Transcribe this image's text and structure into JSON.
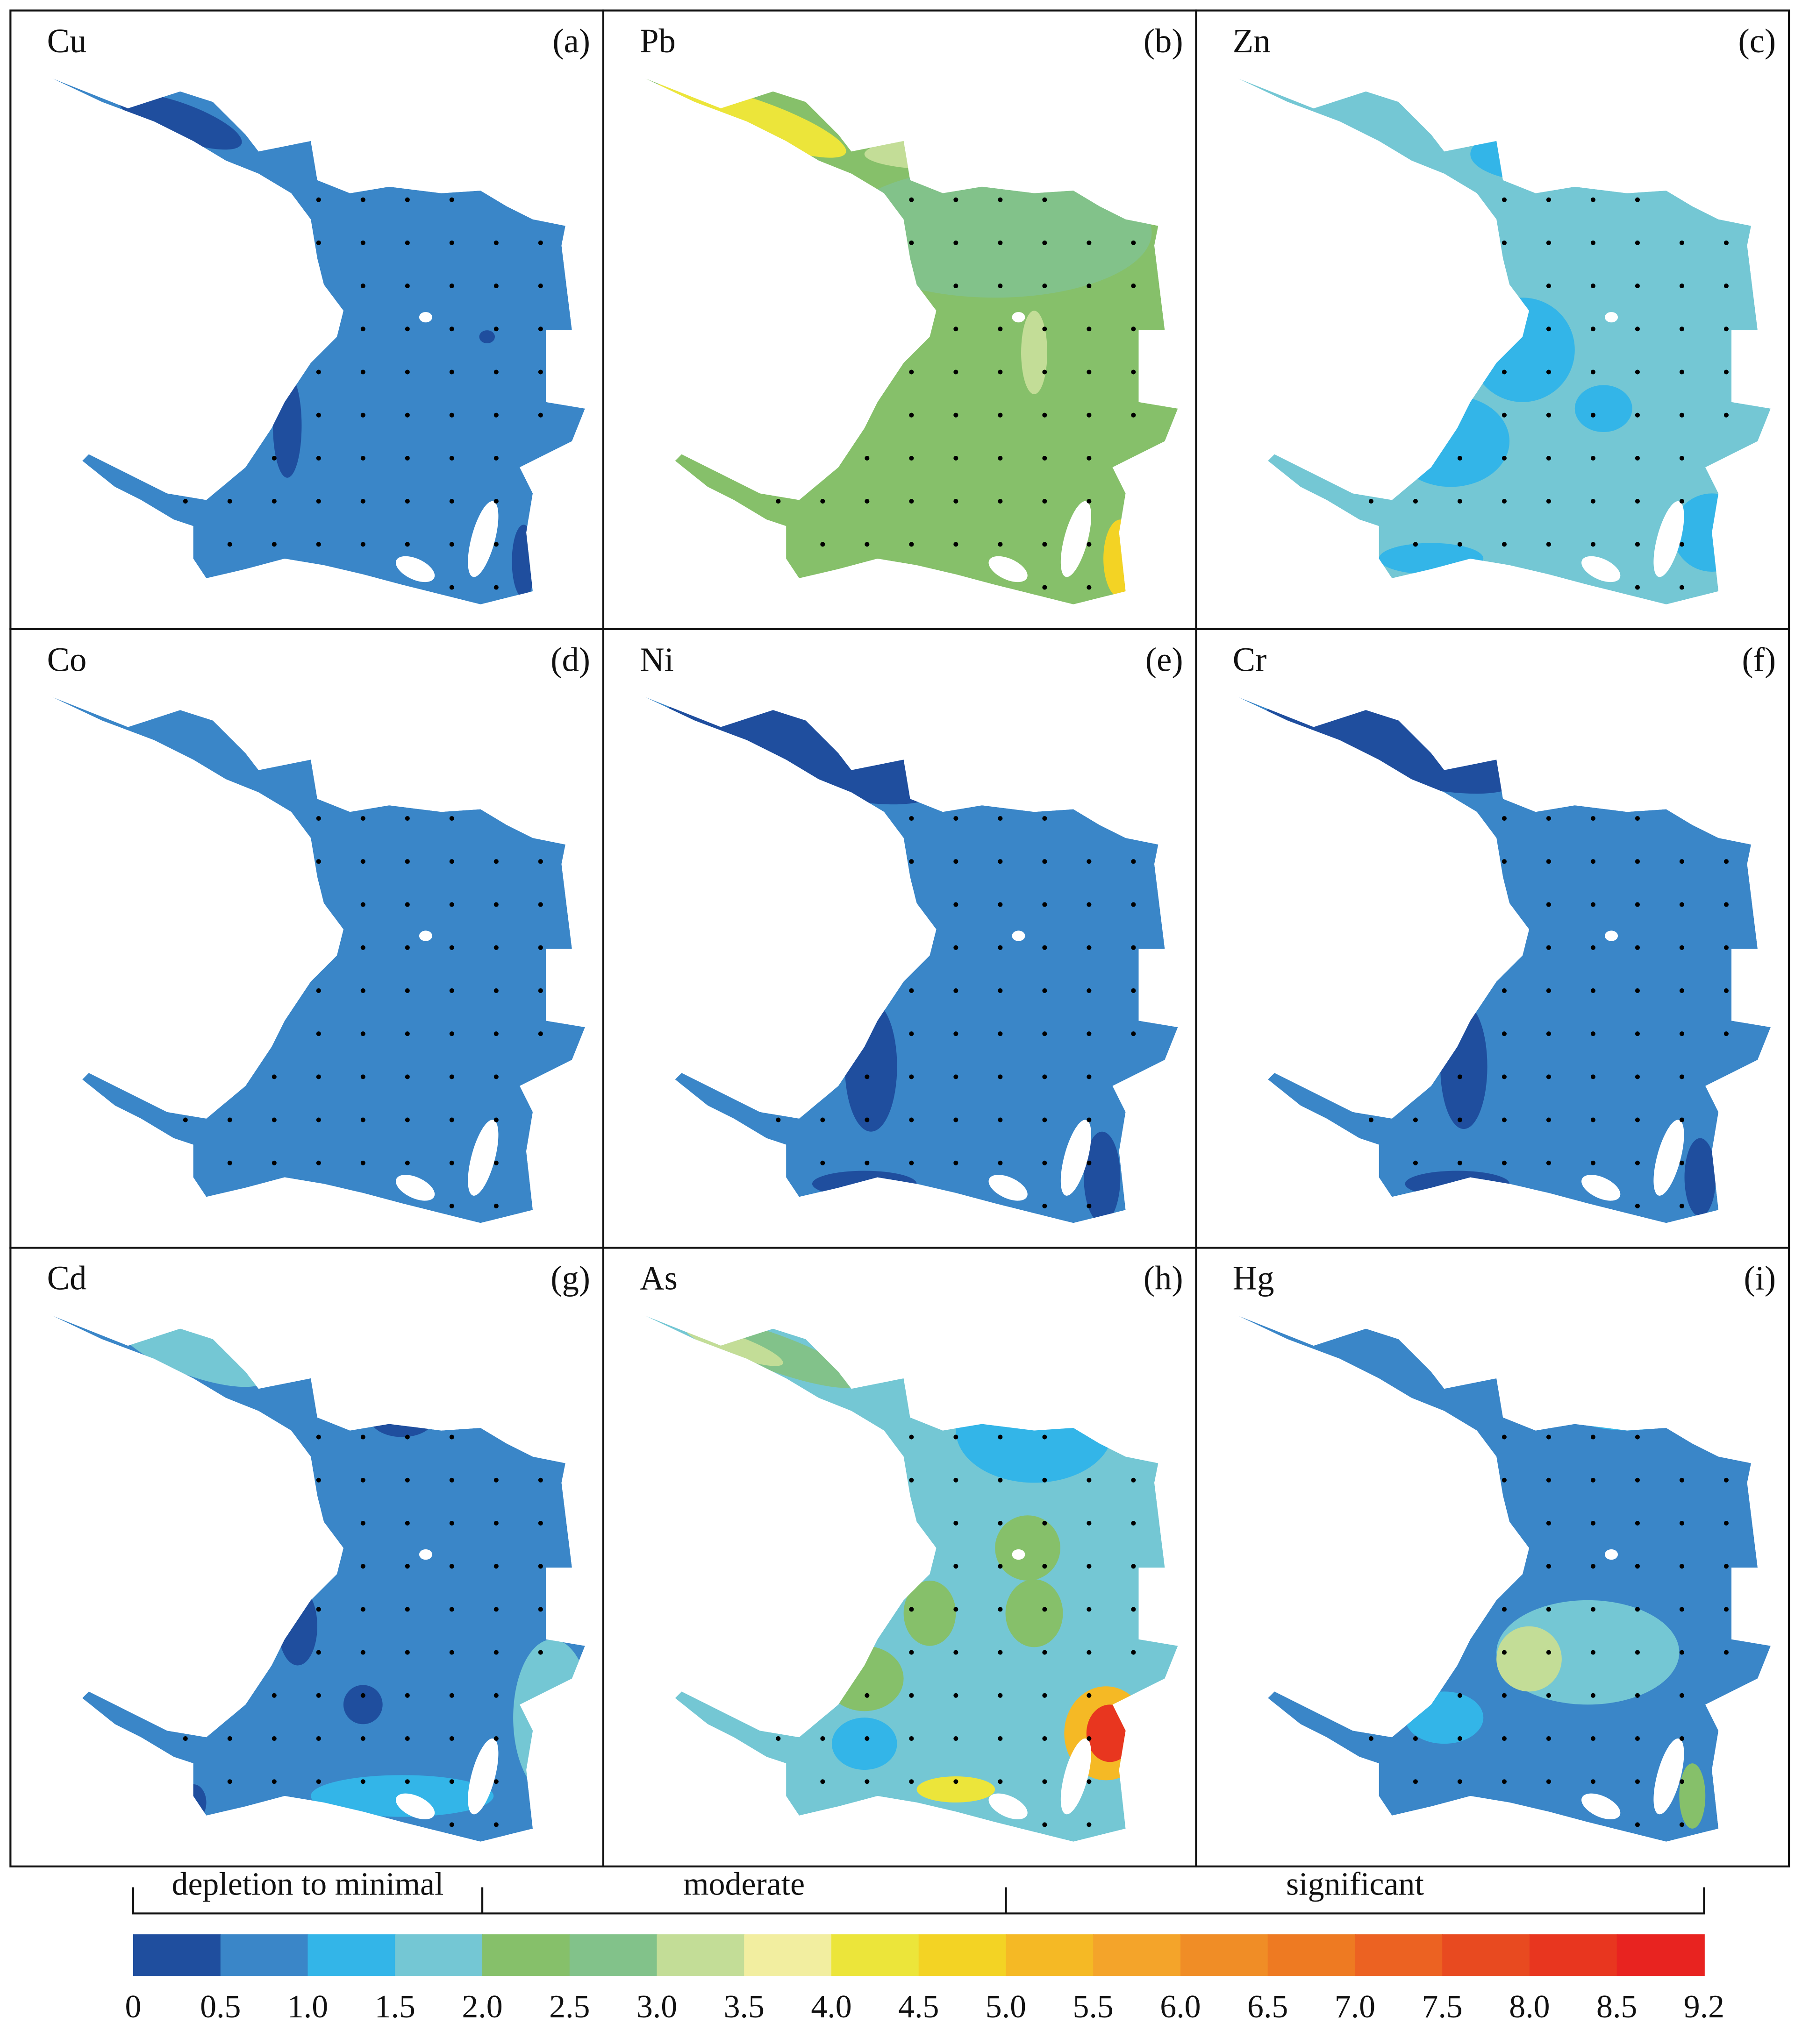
{
  "panels": [
    {
      "element": "Cu",
      "label": "(a)"
    },
    {
      "element": "Pb",
      "label": "(b)"
    },
    {
      "element": "Zn",
      "label": "(c)"
    },
    {
      "element": "Co",
      "label": "(d)"
    },
    {
      "element": "Ni",
      "label": "(e)"
    },
    {
      "element": "Cr",
      "label": "(f)"
    },
    {
      "element": "Cd",
      "label": "(g)"
    },
    {
      "element": "As",
      "label": "(h)"
    },
    {
      "element": "Hg",
      "label": "(i)"
    }
  ],
  "legend": {
    "classes": [
      {
        "label": "depletion to minimal",
        "range": [
          0,
          2
        ]
      },
      {
        "label": "moderate",
        "range": [
          2,
          5
        ]
      },
      {
        "label": "significant",
        "range": [
          5,
          9.2
        ]
      }
    ],
    "colors": [
      "#1f4e9e",
      "#3a86c8",
      "#33b5e8",
      "#74c7d4",
      "#86c06a",
      "#82c28a",
      "#c3dd97",
      "#f2eea0",
      "#ece53a",
      "#f3d324",
      "#f5b925",
      "#f4a42a",
      "#f08d26",
      "#ee7a22",
      "#ec6222",
      "#e84a20",
      "#e8361f",
      "#e82320"
    ],
    "ticks": [
      0,
      0.5,
      {
        "value": 1,
        "label": "1.0"
      },
      1.5,
      {
        "value": 2,
        "label": "2.0"
      },
      2.5,
      {
        "value": 3,
        "label": "3.0"
      },
      3.5,
      {
        "value": 4,
        "label": "4.0"
      },
      4.5,
      {
        "value": 5,
        "label": "5.0"
      },
      5.5,
      {
        "value": 6,
        "label": "6.0"
      },
      6.5,
      {
        "value": 7,
        "label": "7.0"
      },
      7.5,
      {
        "value": 8,
        "label": "8.0"
      },
      8.5,
      9.2
    ]
  }
}
